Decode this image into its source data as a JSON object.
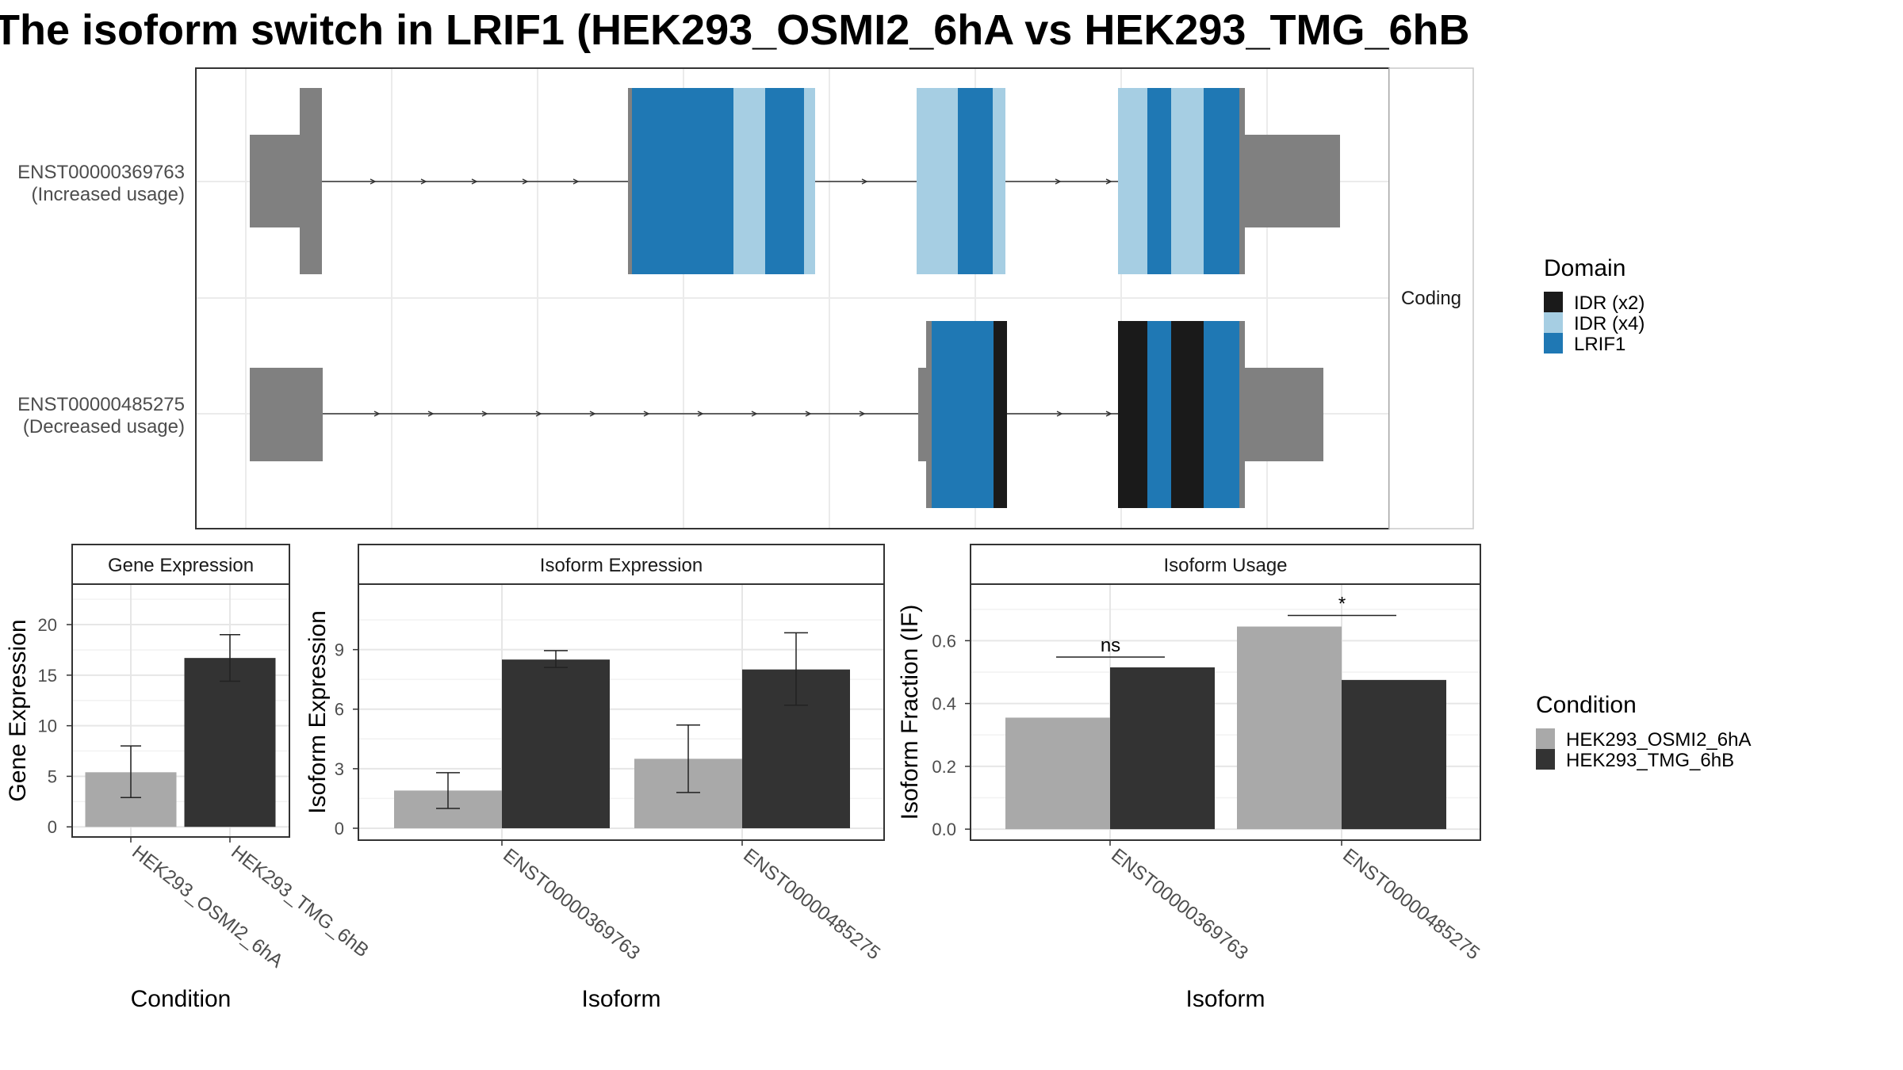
{
  "title": "The isoform switch in LRIF1 (HEK293_OSMI2_6hA vs HEK293_TMG_6hB",
  "structure": {
    "strip_label": "Coding",
    "transcripts": [
      {
        "id": "ENST00000369763",
        "usage": "(Increased usage)"
      },
      {
        "id": "ENST00000485275",
        "usage": "(Decreased usage)"
      }
    ]
  },
  "domain_legend": {
    "title": "Domain",
    "items": [
      {
        "label": "IDR (x2)",
        "color": "#1a1a1a"
      },
      {
        "label": "IDR (x4)",
        "color": "#a6cee3"
      },
      {
        "label": "LRIF1",
        "color": "#1f78b4"
      }
    ]
  },
  "condition_legend": {
    "title": "Condition",
    "items": [
      {
        "label": "HEK293_OSMI2_6hA",
        "color": "#a9a9a9"
      },
      {
        "label": "HEK293_TMG_6hB",
        "color": "#333333"
      }
    ]
  },
  "colors": {
    "utr": "#808080",
    "intron": "#333333",
    "panel_border": "#333333",
    "grid": "#ebebeb"
  },
  "chart_data": [
    {
      "type": "bar",
      "panel": "Gene Expression",
      "categories": [
        "HEK293_OSMI2_6hA",
        "HEK293_TMG_6hB"
      ],
      "values": [
        5.4,
        16.7
      ],
      "errors": [
        [
          2.9,
          8.0
        ],
        [
          14.4,
          19.0
        ]
      ],
      "xlabel": "Condition",
      "ylabel": "Gene Expression",
      "ylim": [
        -1,
        24
      ],
      "yticks": [
        0,
        5,
        10,
        15,
        20
      ]
    },
    {
      "type": "bar",
      "panel": "Isoform Expression",
      "categories": [
        "ENST00000369763",
        "ENST00000485275"
      ],
      "series": [
        {
          "name": "HEK293_OSMI2_6hA",
          "values": [
            1.9,
            3.5
          ],
          "errors": [
            [
              1.0,
              2.8
            ],
            [
              1.8,
              5.2
            ]
          ]
        },
        {
          "name": "HEK293_TMG_6hB",
          "values": [
            8.5,
            8.0
          ],
          "errors": [
            [
              8.1,
              8.95
            ],
            [
              6.2,
              9.85
            ]
          ]
        }
      ],
      "xlabel": "Isoform",
      "ylabel": "Isoform Expression",
      "ylim": [
        -0.6,
        12.3
      ],
      "yticks": [
        0,
        3,
        6,
        9
      ]
    },
    {
      "type": "bar",
      "panel": "Isoform Usage",
      "categories": [
        "ENST00000369763",
        "ENST00000485275"
      ],
      "series": [
        {
          "name": "HEK293_OSMI2_6hA",
          "values": [
            0.355,
            0.645
          ]
        },
        {
          "name": "HEK293_TMG_6hB",
          "values": [
            0.515,
            0.475
          ]
        }
      ],
      "significance": [
        "ns",
        "*"
      ],
      "xlabel": "Isoform",
      "ylabel": "Isoform Fraction (IF)",
      "ylim": [
        -0.035,
        0.78
      ],
      "yticks": [
        0.0,
        0.2,
        0.4,
        0.6
      ],
      "ytick_labels": [
        "0.0",
        "0.2",
        "0.4",
        "0.6"
      ]
    }
  ]
}
